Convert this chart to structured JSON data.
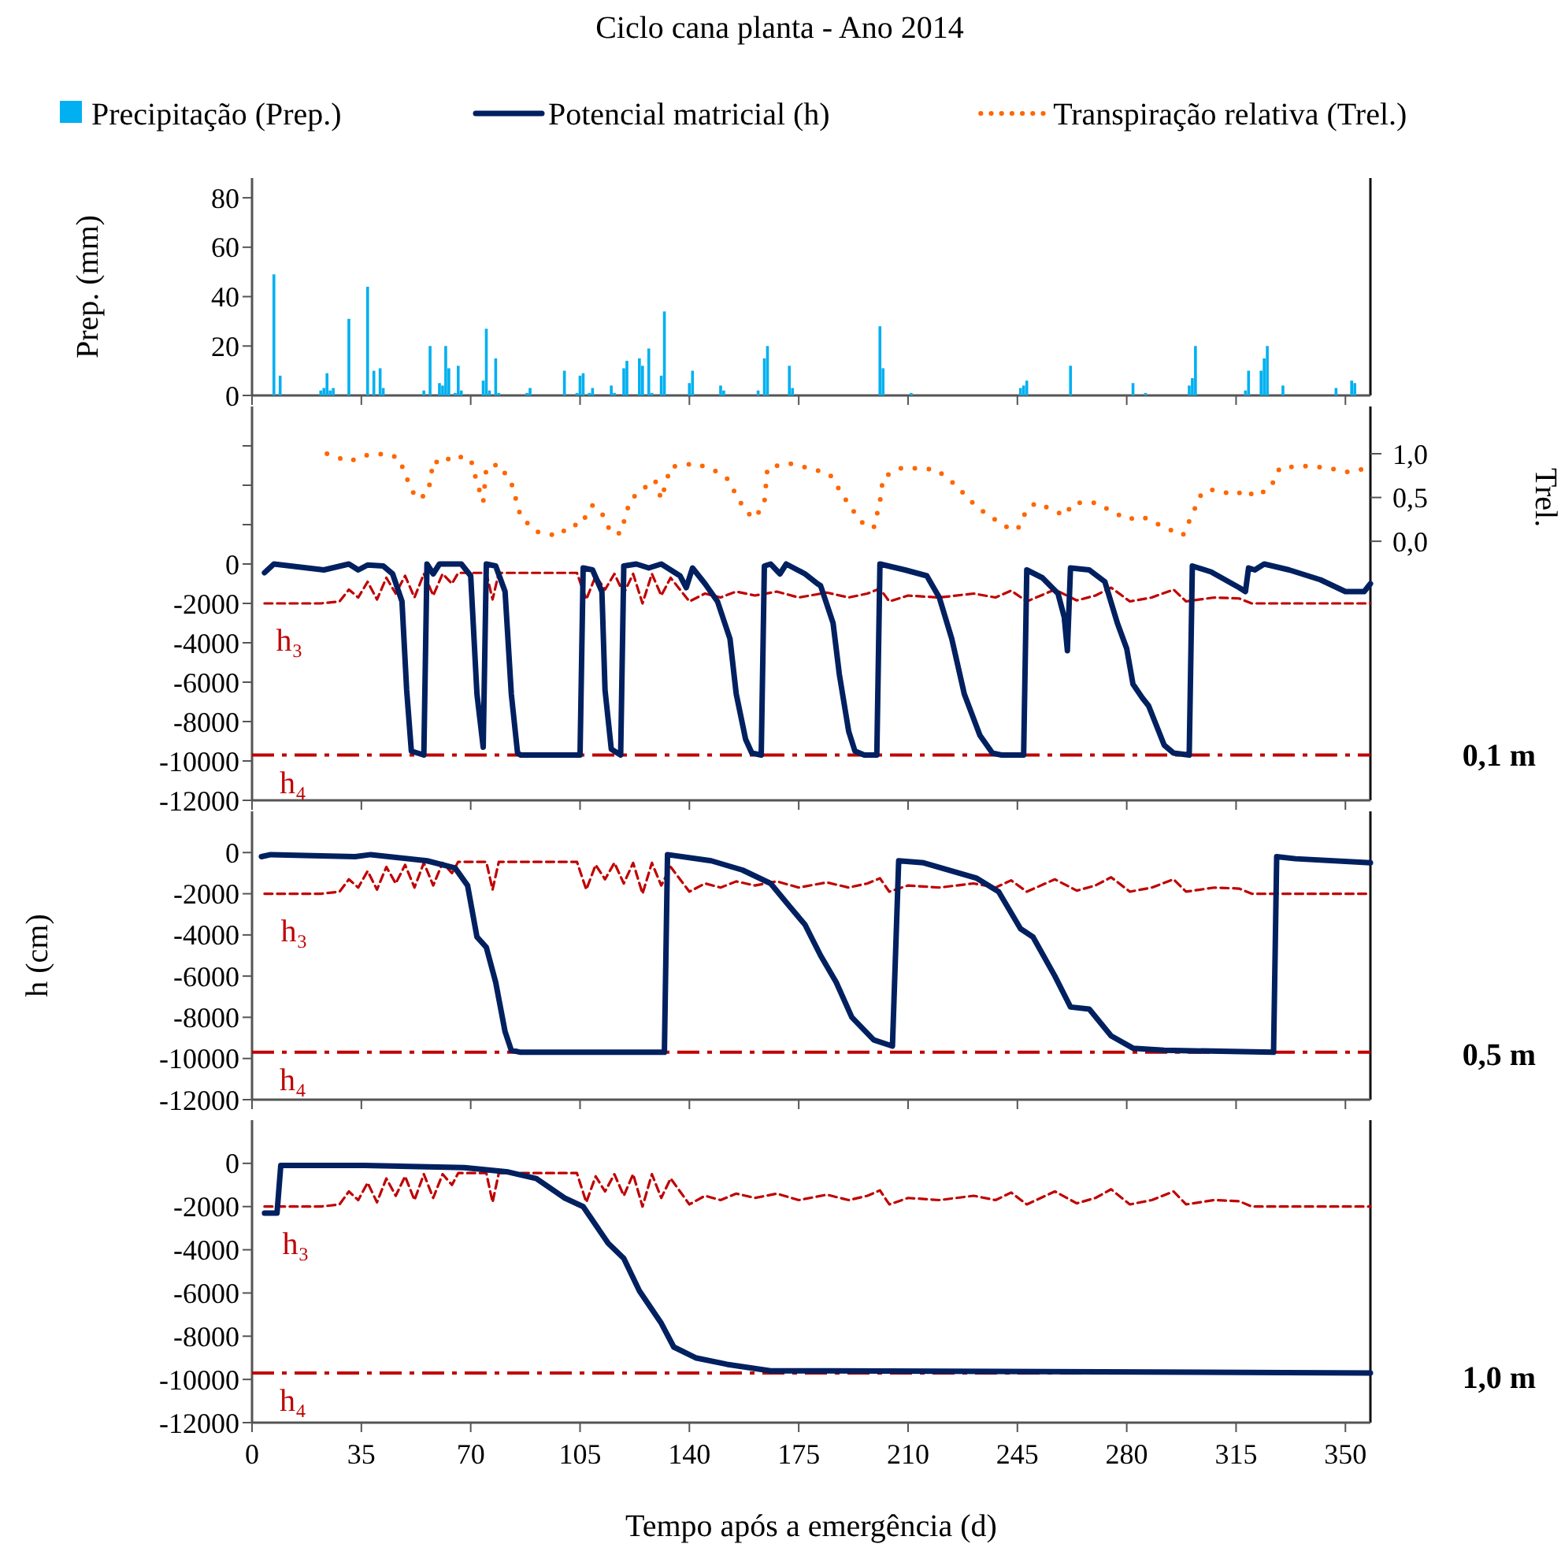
{
  "chart_data": [
    {
      "type": "bar",
      "title": "Ciclo cana planta - Ano 2014",
      "ylabel": "Prep. (mm)",
      "legend": "top",
      "tick_labels": "y",
      "xlim": [
        0,
        358
      ],
      "xticks": [
        {
          "value": 0,
          "label": null
        },
        {
          "value": 35,
          "label": null
        },
        {
          "value": 70,
          "label": null
        },
        {
          "value": 105,
          "label": null
        },
        {
          "value": 140,
          "label": null
        },
        {
          "value": 175,
          "label": null
        },
        {
          "value": 210,
          "label": null
        },
        {
          "value": 245,
          "label": null
        },
        {
          "value": 280,
          "label": null
        },
        {
          "value": 315,
          "label": null
        },
        {
          "value": 350,
          "label": null
        }
      ],
      "ylim": [
        0,
        88
      ],
      "yticks": [
        0,
        20,
        40,
        60,
        80
      ],
      "series": [
        {
          "name": "Precipitação (Prep.)",
          "color": "#00b0f0",
          "x": [
            7,
            9,
            22,
            23,
            24,
            25,
            26,
            31,
            37,
            39,
            41,
            42,
            55,
            57,
            60,
            61,
            62,
            63,
            65,
            66,
            67,
            74,
            75,
            76,
            78,
            79,
            88,
            89,
            100,
            104,
            105,
            106,
            108,
            109,
            115,
            116,
            119,
            120,
            124,
            125,
            127,
            128,
            131,
            132,
            140,
            141,
            150,
            151,
            162,
            164,
            165,
            172,
            173,
            201,
            202,
            211,
            246,
            247,
            248,
            262,
            282,
            286,
            300,
            301,
            302,
            318,
            319,
            323,
            324,
            325,
            330,
            347,
            352,
            353
          ],
          "values": [
            49,
            8,
            2,
            3,
            9,
            2,
            3,
            31,
            44,
            10,
            11,
            3,
            2,
            20,
            5,
            4,
            20,
            11,
            1,
            12,
            2,
            6,
            27,
            2,
            15,
            1,
            1,
            3,
            10,
            1,
            8,
            9,
            1,
            3,
            4,
            1,
            11,
            14,
            15,
            12,
            19,
            1,
            8,
            34,
            5,
            10,
            4,
            2,
            2,
            15,
            20,
            12,
            3,
            28,
            11,
            1,
            3,
            4,
            6,
            12,
            5,
            1,
            4,
            7,
            20,
            2,
            10,
            10,
            15,
            20,
            4,
            3,
            6,
            5
          ]
        }
      ]
    },
    {
      "type": "line",
      "legend": "top",
      "tick_labels": "y",
      "xlim": [
        0,
        358
      ],
      "xticks": [
        {
          "value": 0,
          "label": null
        },
        {
          "value": 35,
          "label": null
        },
        {
          "value": 70,
          "label": null
        },
        {
          "value": 105,
          "label": null
        },
        {
          "value": 140,
          "label": null
        },
        {
          "value": 175,
          "label": null
        },
        {
          "value": 210,
          "label": null
        },
        {
          "value": 245,
          "label": null
        },
        {
          "value": 280,
          "label": null
        },
        {
          "value": 315,
          "label": null
        },
        {
          "value": 350,
          "label": null
        }
      ],
      "ylim": [
        -12000,
        8000
      ],
      "yticks": [
        -12000,
        -10000,
        -8000,
        -6000,
        -4000,
        -2000,
        0,
        {
          "value": 2000,
          "label": null
        },
        {
          "value": 4000,
          "label": null
        },
        {
          "value": 6000,
          "label": null
        }
      ],
      "y2label": "Trel.",
      "y2lim": [
        -2.96,
        1.54
      ],
      "y2ticks": [
        {
          "value": 0,
          "label": "0,0"
        },
        {
          "value": 0.5,
          "label": "0,5"
        },
        {
          "value": 1,
          "label": "1,0"
        }
      ],
      "series": [
        {
          "color": "#c00000",
          "line_style": "dashed",
          "x": [
            4,
            22,
            28,
            31,
            34,
            37,
            40,
            43,
            46,
            49,
            52,
            55,
            58,
            61,
            64,
            66,
            75,
            77,
            79,
            104,
            107,
            110,
            113,
            116,
            119,
            122,
            125,
            128,
            131,
            134,
            137,
            140,
            145,
            150,
            155,
            161,
            168,
            175,
            184,
            191,
            197,
            201,
            204,
            210,
            220,
            231,
            238,
            243,
            248,
            257,
            264,
            270,
            275,
            281,
            288,
            295,
            299,
            308,
            316,
            320,
            358
          ],
          "values": [
            -2000,
            -2000,
            -1900,
            -1300,
            -1700,
            -900,
            -1800,
            -700,
            -1500,
            -600,
            -1700,
            -500,
            -1600,
            -500,
            -1000,
            -450,
            -450,
            -1800,
            -450,
            -450,
            -1800,
            -600,
            -1300,
            -500,
            -1500,
            -500,
            -2000,
            -500,
            -1600,
            -700,
            -1300,
            -1900,
            -1500,
            -1700,
            -1400,
            -1600,
            -1400,
            -1700,
            -1450,
            -1700,
            -1500,
            -1250,
            -1900,
            -1600,
            -1700,
            -1500,
            -1700,
            -1350,
            -1900,
            -1300,
            -1850,
            -1600,
            -1200,
            -1900,
            -1700,
            -1300,
            -1900,
            -1700,
            -1750,
            -2000,
            -2000
          ]
        },
        {
          "name": "Potencial matricial (h)",
          "color": "#002060",
          "line_style": "solid",
          "x": [
            4,
            7,
            23,
            31,
            34,
            37,
            42,
            45,
            48,
            49.5,
            51,
            55,
            56,
            58,
            60,
            67,
            70,
            72,
            74,
            75,
            78,
            81,
            83,
            85,
            86,
            105,
            106,
            109,
            112,
            113,
            115,
            118,
            119,
            123,
            127,
            131,
            137,
            139,
            141,
            145,
            149,
            153,
            155,
            158,
            160,
            163,
            164,
            166,
            169,
            171,
            177,
            181,
            182,
            186,
            188,
            191,
            193,
            196,
            200,
            201,
            209,
            216,
            220,
            224,
            228,
            233,
            237,
            240,
            247,
            248,
            253,
            258,
            260,
            261,
            262,
            268,
            273,
            277,
            280,
            282,
            285,
            287,
            292,
            295,
            300,
            301,
            307,
            316,
            318,
            319,
            321,
            324,
            332,
            342,
            350,
            356,
            358
          ],
          "values": [
            -440,
            0,
            -300,
            0,
            -300,
            -50,
            -100,
            -500,
            -1900,
            -6400,
            -9500,
            -9700,
            0,
            -500,
            0,
            0,
            -600,
            -6600,
            -9300,
            0,
            -100,
            -1400,
            -6600,
            -9600,
            -9700,
            -9700,
            -200,
            -300,
            -1400,
            -6400,
            -9400,
            -9700,
            -100,
            0,
            -200,
            0,
            -600,
            -1200,
            -200,
            -1000,
            -1900,
            -3800,
            -6600,
            -8900,
            -9600,
            -9700,
            -100,
            0,
            -500,
            0,
            -500,
            -1000,
            -1100,
            -3000,
            -5600,
            -8500,
            -9500,
            -9700,
            -9700,
            0,
            -300,
            -600,
            -1700,
            -3800,
            -6600,
            -8700,
            -9600,
            -9700,
            -9700,
            -300,
            -700,
            -1500,
            -2700,
            -4400,
            -200,
            -300,
            -900,
            -3000,
            -4300,
            -6100,
            -6800,
            -7200,
            -9200,
            -9600,
            -9700,
            -100,
            -400,
            -1200,
            -1400,
            -200,
            -300,
            0,
            -300,
            -800,
            -1400,
            -1400,
            -1000
          ]
        },
        {
          "name": "Transpiração relativa (Trel.)",
          "color": "#ff6600",
          "line_style": "dotted",
          "axis": "y2",
          "x": [
            24,
            31,
            36,
            43,
            47,
            51,
            53,
            56,
            57,
            58,
            61,
            64,
            70,
            72,
            74,
            75,
            79,
            83,
            86,
            91,
            98,
            102,
            105,
            109,
            112,
            115,
            118,
            121,
            126,
            129,
            131,
            134,
            142,
            148,
            152,
            158,
            161,
            164,
            165,
            172,
            180,
            185,
            191,
            195,
            199,
            201,
            202,
            208,
            219,
            225,
            232,
            241,
            245,
            248,
            251,
            257,
            260,
            263,
            270,
            277,
            280,
            285,
            292,
            298,
            301,
            304,
            307,
            315,
            318,
            321,
            326,
            329,
            337,
            344,
            351,
            355
          ],
          "values": [
            1.0,
            0.91,
            0.98,
            1.0,
            0.95,
            0.59,
            0.48,
            0.54,
            0.67,
            0.92,
            0.88,
            0.98,
            0.94,
            0.67,
            0.45,
            0.84,
            0.88,
            0.67,
            0.28,
            0.11,
            0.06,
            0.19,
            0.18,
            0.41,
            0.32,
            0.09,
            0.09,
            0.47,
            0.62,
            0.7,
            0.48,
            0.85,
            0.89,
            0.81,
            0.72,
            0.34,
            0.26,
            0.44,
            0.84,
            0.89,
            0.82,
            0.76,
            0.42,
            0.22,
            0.15,
            0.45,
            0.73,
            0.84,
            0.82,
            0.65,
            0.39,
            0.17,
            0.13,
            0.36,
            0.44,
            0.35,
            0.29,
            0.44,
            0.44,
            0.31,
            0.25,
            0.28,
            0.16,
            0.07,
            0.31,
            0.55,
            0.59,
            0.53,
            0.59,
            0.51,
            0.61,
            0.84,
            0.86,
            0.84,
            0.79,
            0.82
          ]
        }
      ],
      "ref_lines": [
        {
          "axis": "y",
          "value": -9700,
          "label": "h₄",
          "color": "#c00000",
          "line_style": "dashed"
        }
      ],
      "annotations": [
        {
          "text": "h₃",
          "x": 12,
          "y": -2000
        },
        "0,1 m"
      ]
    },
    {
      "type": "line",
      "ylabel": "h (cm)",
      "tick_labels": "y",
      "xlim": [
        0,
        358
      ],
      "xticks": [
        {
          "value": 0,
          "label": null
        },
        {
          "value": 35,
          "label": null
        },
        {
          "value": 70,
          "label": null
        },
        {
          "value": 105,
          "label": null
        },
        {
          "value": 140,
          "label": null
        },
        {
          "value": 175,
          "label": null
        },
        {
          "value": 210,
          "label": null
        },
        {
          "value": 245,
          "label": null
        },
        {
          "value": 280,
          "label": null
        },
        {
          "value": 315,
          "label": null
        },
        {
          "value": 350,
          "label": null
        }
      ],
      "ylim": [
        -12000,
        2000
      ],
      "yticks": [
        -12000,
        -10000,
        -8000,
        -6000,
        -4000,
        -2000,
        0
      ],
      "series": [
        {
          "color": "#c00000",
          "line_style": "dashed",
          "x": [
            4,
            22,
            28,
            31,
            34,
            37,
            40,
            43,
            46,
            49,
            52,
            55,
            58,
            61,
            64,
            66,
            75,
            77,
            79,
            104,
            107,
            110,
            113,
            116,
            119,
            122,
            125,
            128,
            131,
            134,
            137,
            140,
            145,
            150,
            155,
            161,
            168,
            175,
            184,
            191,
            197,
            201,
            204,
            210,
            220,
            231,
            238,
            243,
            248,
            257,
            264,
            270,
            275,
            281,
            288,
            295,
            299,
            308,
            316,
            320,
            358
          ],
          "values": [
            -2000,
            -2000,
            -1900,
            -1300,
            -1700,
            -900,
            -1800,
            -700,
            -1500,
            -600,
            -1700,
            -500,
            -1600,
            -500,
            -1000,
            -450,
            -450,
            -1800,
            -450,
            -450,
            -1800,
            -600,
            -1300,
            -500,
            -1500,
            -500,
            -2000,
            -500,
            -1600,
            -700,
            -1300,
            -1900,
            -1500,
            -1700,
            -1400,
            -1600,
            -1400,
            -1700,
            -1450,
            -1700,
            -1500,
            -1250,
            -1900,
            -1600,
            -1700,
            -1500,
            -1700,
            -1350,
            -1900,
            -1300,
            -1850,
            -1600,
            -1200,
            -1900,
            -1700,
            -1300,
            -1900,
            -1700,
            -1750,
            -2000,
            -2000
          ]
        },
        {
          "color": "#002060",
          "line_style": "solid",
          "x": [
            3,
            6,
            33,
            38,
            56,
            65,
            69,
            72,
            75,
            78,
            81,
            83,
            86,
            132,
            133,
            147,
            157,
            166,
            172,
            177,
            182,
            187,
            192,
            199,
            205,
            207,
            215,
            232,
            239,
            246,
            250,
            257,
            262,
            268,
            275,
            282,
            292,
            327,
            328,
            334,
            358
          ],
          "values": [
            -200,
            -100,
            -200,
            -100,
            -400,
            -750,
            -1600,
            -4100,
            -4600,
            -6300,
            -8700,
            -9600,
            -9700,
            -9700,
            -100,
            -400,
            -850,
            -1500,
            -2600,
            -3500,
            -5000,
            -6300,
            -8000,
            -9100,
            -9400,
            -400,
            -500,
            -1250,
            -1900,
            -3700,
            -4100,
            -6000,
            -7500,
            -7600,
            -8900,
            -9500,
            -9600,
            -9700,
            -200,
            -300,
            -500
          ]
        }
      ],
      "ref_lines": [
        {
          "axis": "y",
          "value": -9700,
          "label": "h₄",
          "color": "#c00000",
          "line_style": "dashed"
        }
      ],
      "annotations": [
        {
          "text": "h₃",
          "x": 13.5,
          "y": -2000
        },
        "0,5 m"
      ]
    },
    {
      "type": "line",
      "xlabel": "Tempo após a emergência (d)",
      "xlim": [
        0,
        358
      ],
      "xticks": [
        0,
        35,
        70,
        105,
        140,
        175,
        210,
        245,
        280,
        315,
        350
      ],
      "ylim": [
        -12000,
        2000
      ],
      "yticks": [
        -12000,
        -10000,
        -8000,
        -6000,
        -4000,
        -2000,
        0
      ],
      "series": [
        {
          "color": "#c00000",
          "line_style": "dashed",
          "x": [
            4,
            22,
            28,
            31,
            34,
            37,
            40,
            43,
            46,
            49,
            52,
            55,
            58,
            61,
            64,
            66,
            75,
            77,
            79,
            104,
            107,
            110,
            113,
            116,
            119,
            122,
            125,
            128,
            131,
            134,
            137,
            140,
            145,
            150,
            155,
            161,
            168,
            175,
            184,
            191,
            197,
            201,
            204,
            210,
            220,
            231,
            238,
            243,
            248,
            257,
            264,
            270,
            275,
            281,
            288,
            295,
            299,
            308,
            316,
            320,
            358
          ],
          "values": [
            -2000,
            -2000,
            -1900,
            -1300,
            -1700,
            -900,
            -1800,
            -700,
            -1500,
            -600,
            -1700,
            -500,
            -1600,
            -500,
            -1000,
            -450,
            -450,
            -1800,
            -450,
            -450,
            -1800,
            -600,
            -1300,
            -500,
            -1500,
            -500,
            -2000,
            -500,
            -1600,
            -700,
            -1300,
            -1900,
            -1500,
            -1700,
            -1400,
            -1600,
            -1400,
            -1700,
            -1450,
            -1700,
            -1500,
            -1250,
            -1900,
            -1600,
            -1700,
            -1500,
            -1700,
            -1350,
            -1900,
            -1300,
            -1850,
            -1600,
            -1200,
            -1900,
            -1700,
            -1300,
            -1900,
            -1700,
            -1750,
            -2000,
            -2000
          ]
        },
        {
          "color": "#002060",
          "line_style": "solid",
          "x": [
            4,
            8,
            9.2,
            36,
            68,
            82,
            91,
            100,
            106,
            114,
            119,
            124,
            131,
            135,
            142,
            152,
            166,
            185,
            358
          ],
          "values": [
            -2300,
            -2300,
            -100,
            -100,
            -200,
            -400,
            -700,
            -1600,
            -2000,
            -3700,
            -4400,
            -5900,
            -7400,
            -8500,
            -9000,
            -9300,
            -9600,
            -9600,
            -9700
          ]
        }
      ],
      "ref_lines": [
        {
          "axis": "y",
          "value": -9700,
          "label": "h₄",
          "color": "#c00000",
          "line_style": "dashed"
        }
      ],
      "annotations": [
        {
          "text": "h₃",
          "x": 14,
          "y": -2000
        },
        "1,0 m"
      ]
    }
  ]
}
